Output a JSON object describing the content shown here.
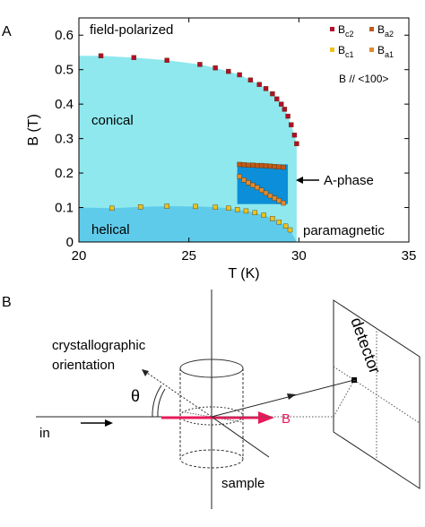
{
  "panel_a": {
    "label": "A",
    "ylabel": "B (T)",
    "xlabel": "T (K)",
    "region_labels": {
      "field_polarized": "field-polarized",
      "conical": "conical",
      "helical": "helical",
      "paramagnetic": "paramagnetic",
      "a_phase": "A-phase"
    },
    "legend": {
      "bc2": {
        "main": "B",
        "sub": "c2"
      },
      "ba2": {
        "main": "B",
        "sub": "a2"
      },
      "bc1": {
        "main": "B",
        "sub": "c1"
      },
      "ba1": {
        "main": "B",
        "sub": "a1"
      },
      "note": "B // <100>"
    },
    "colors": {
      "conical_fill": "#8ee8ee",
      "helical_fill": "#5fcbea",
      "a_phase_fill": "#0c8fd8",
      "bc2": "#b0102a",
      "ba2": "#c05a1a",
      "bc1": "#e8c320",
      "ba1": "#e08a30"
    }
  },
  "chart_data": {
    "type": "scatter",
    "xlabel": "T (K)",
    "ylabel": "B (T)",
    "xlim": [
      20,
      35
    ],
    "ylim": [
      0,
      0.65
    ],
    "xticks": [
      20,
      25,
      30,
      35
    ],
    "yticks": [
      0,
      0.1,
      0.2,
      0.3,
      0.4,
      0.5,
      0.6
    ],
    "grid": false,
    "legend_position": "top-right",
    "series": [
      {
        "name": "Bc2",
        "color": "#b0102a",
        "points": [
          [
            21.0,
            0.54
          ],
          [
            22.5,
            0.535
          ],
          [
            24.0,
            0.527
          ],
          [
            25.5,
            0.515
          ],
          [
            26.2,
            0.505
          ],
          [
            26.8,
            0.495
          ],
          [
            27.3,
            0.485
          ],
          [
            27.8,
            0.47
          ],
          [
            28.2,
            0.457
          ],
          [
            28.5,
            0.445
          ],
          [
            28.8,
            0.43
          ],
          [
            29.0,
            0.415
          ],
          [
            29.2,
            0.4
          ],
          [
            29.35,
            0.385
          ],
          [
            29.5,
            0.365
          ],
          [
            29.65,
            0.34
          ],
          [
            29.8,
            0.31
          ],
          [
            29.9,
            0.285
          ]
        ]
      },
      {
        "name": "Ba2",
        "color": "#c05a1a",
        "points": [
          [
            27.3,
            0.225
          ],
          [
            27.5,
            0.224
          ],
          [
            27.7,
            0.223
          ],
          [
            27.9,
            0.223
          ],
          [
            28.1,
            0.222
          ],
          [
            28.3,
            0.222
          ],
          [
            28.5,
            0.221
          ],
          [
            28.7,
            0.22
          ],
          [
            28.9,
            0.219
          ],
          [
            29.1,
            0.218
          ],
          [
            29.3,
            0.217
          ]
        ]
      },
      {
        "name": "Ba1",
        "color": "#e08a30",
        "points": [
          [
            27.3,
            0.19
          ],
          [
            27.5,
            0.18
          ],
          [
            27.7,
            0.172
          ],
          [
            27.9,
            0.165
          ],
          [
            28.1,
            0.158
          ],
          [
            28.3,
            0.15
          ],
          [
            28.5,
            0.142
          ],
          [
            28.7,
            0.134
          ],
          [
            28.9,
            0.127
          ],
          [
            29.1,
            0.12
          ],
          [
            29.3,
            0.113
          ]
        ]
      },
      {
        "name": "Bc1",
        "color": "#e8c320",
        "points": [
          [
            21.5,
            0.098
          ],
          [
            22.8,
            0.102
          ],
          [
            24.0,
            0.104
          ],
          [
            25.3,
            0.103
          ],
          [
            26.2,
            0.101
          ],
          [
            26.8,
            0.098
          ],
          [
            27.2,
            0.094
          ],
          [
            27.6,
            0.09
          ],
          [
            28.0,
            0.085
          ],
          [
            28.4,
            0.078
          ],
          [
            28.8,
            0.068
          ],
          [
            29.1,
            0.058
          ],
          [
            29.4,
            0.046
          ],
          [
            29.6,
            0.035
          ]
        ]
      }
    ]
  },
  "panel_b": {
    "label": "B",
    "labels": {
      "crystal_line1": "crystallographic",
      "crystal_line2": "orientation",
      "theta": "θ",
      "in": "in",
      "b_field": "B",
      "sample": "sample",
      "detector": "detector"
    },
    "colors": {
      "b_arrow": "#e8195a"
    }
  }
}
